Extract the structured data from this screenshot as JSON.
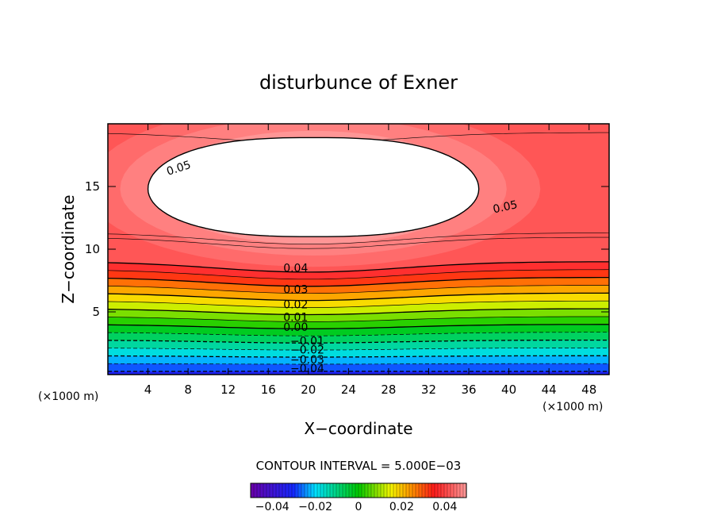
{
  "chart_data": {
    "type": "contour",
    "title": "disturbunce of Exner",
    "xlabel": "X−coordinate",
    "ylabel": "Z−coordinate",
    "x_unit_left": "(×1000 m)",
    "x_unit_right": "(×1000 m)",
    "xlim": [
      0,
      50
    ],
    "ylim": [
      0,
      20
    ],
    "x_ticks": [
      4,
      8,
      12,
      16,
      20,
      24,
      28,
      32,
      36,
      40,
      44,
      48
    ],
    "y_ticks": [
      5,
      10,
      15
    ],
    "contour_interval_text": "CONTOUR INTERVAL = 5.000E−03",
    "contour_interval": 0.005,
    "value_range": [
      -0.05,
      0.05
    ],
    "contour_labels": [
      {
        "text": "0.05",
        "x": 6,
        "z": 16.2
      },
      {
        "text": "0.05",
        "x": 38.5,
        "z": 13.2
      },
      {
        "text": "0.04",
        "x": 17.5,
        "z": 8.5
      },
      {
        "text": "0.03",
        "x": 17.5,
        "z": 6.8
      },
      {
        "text": "0.02",
        "x": 17.5,
        "z": 5.6
      },
      {
        "text": "0.01",
        "x": 17.5,
        "z": 4.6
      },
      {
        "text": "0.00",
        "x": 17.5,
        "z": 3.8
      },
      {
        "text": "−0.01",
        "x": 18.2,
        "z": 2.7
      },
      {
        "text": "−0.02",
        "x": 18.2,
        "z": 2.0
      },
      {
        "text": "−0.03",
        "x": 18.2,
        "z": 1.2
      },
      {
        "text": "−0.04",
        "x": 18.2,
        "z": 0.5
      }
    ],
    "colorbar": {
      "tick_values": [
        -0.04,
        -0.02,
        0,
        0.02,
        0.04
      ],
      "tick_labels": [
        "−0.04",
        "−0.02",
        "0",
        "0.02",
        "0.04"
      ]
    },
    "colors": {
      "purple": "#6a00a8",
      "blue": "#1428ff",
      "cyan": "#00e0ff",
      "green": "#00c800",
      "yellow": "#f5f500",
      "orange": "#ff8c00",
      "red": "#ff1a1a",
      "pink": "#ff9a9a"
    }
  }
}
